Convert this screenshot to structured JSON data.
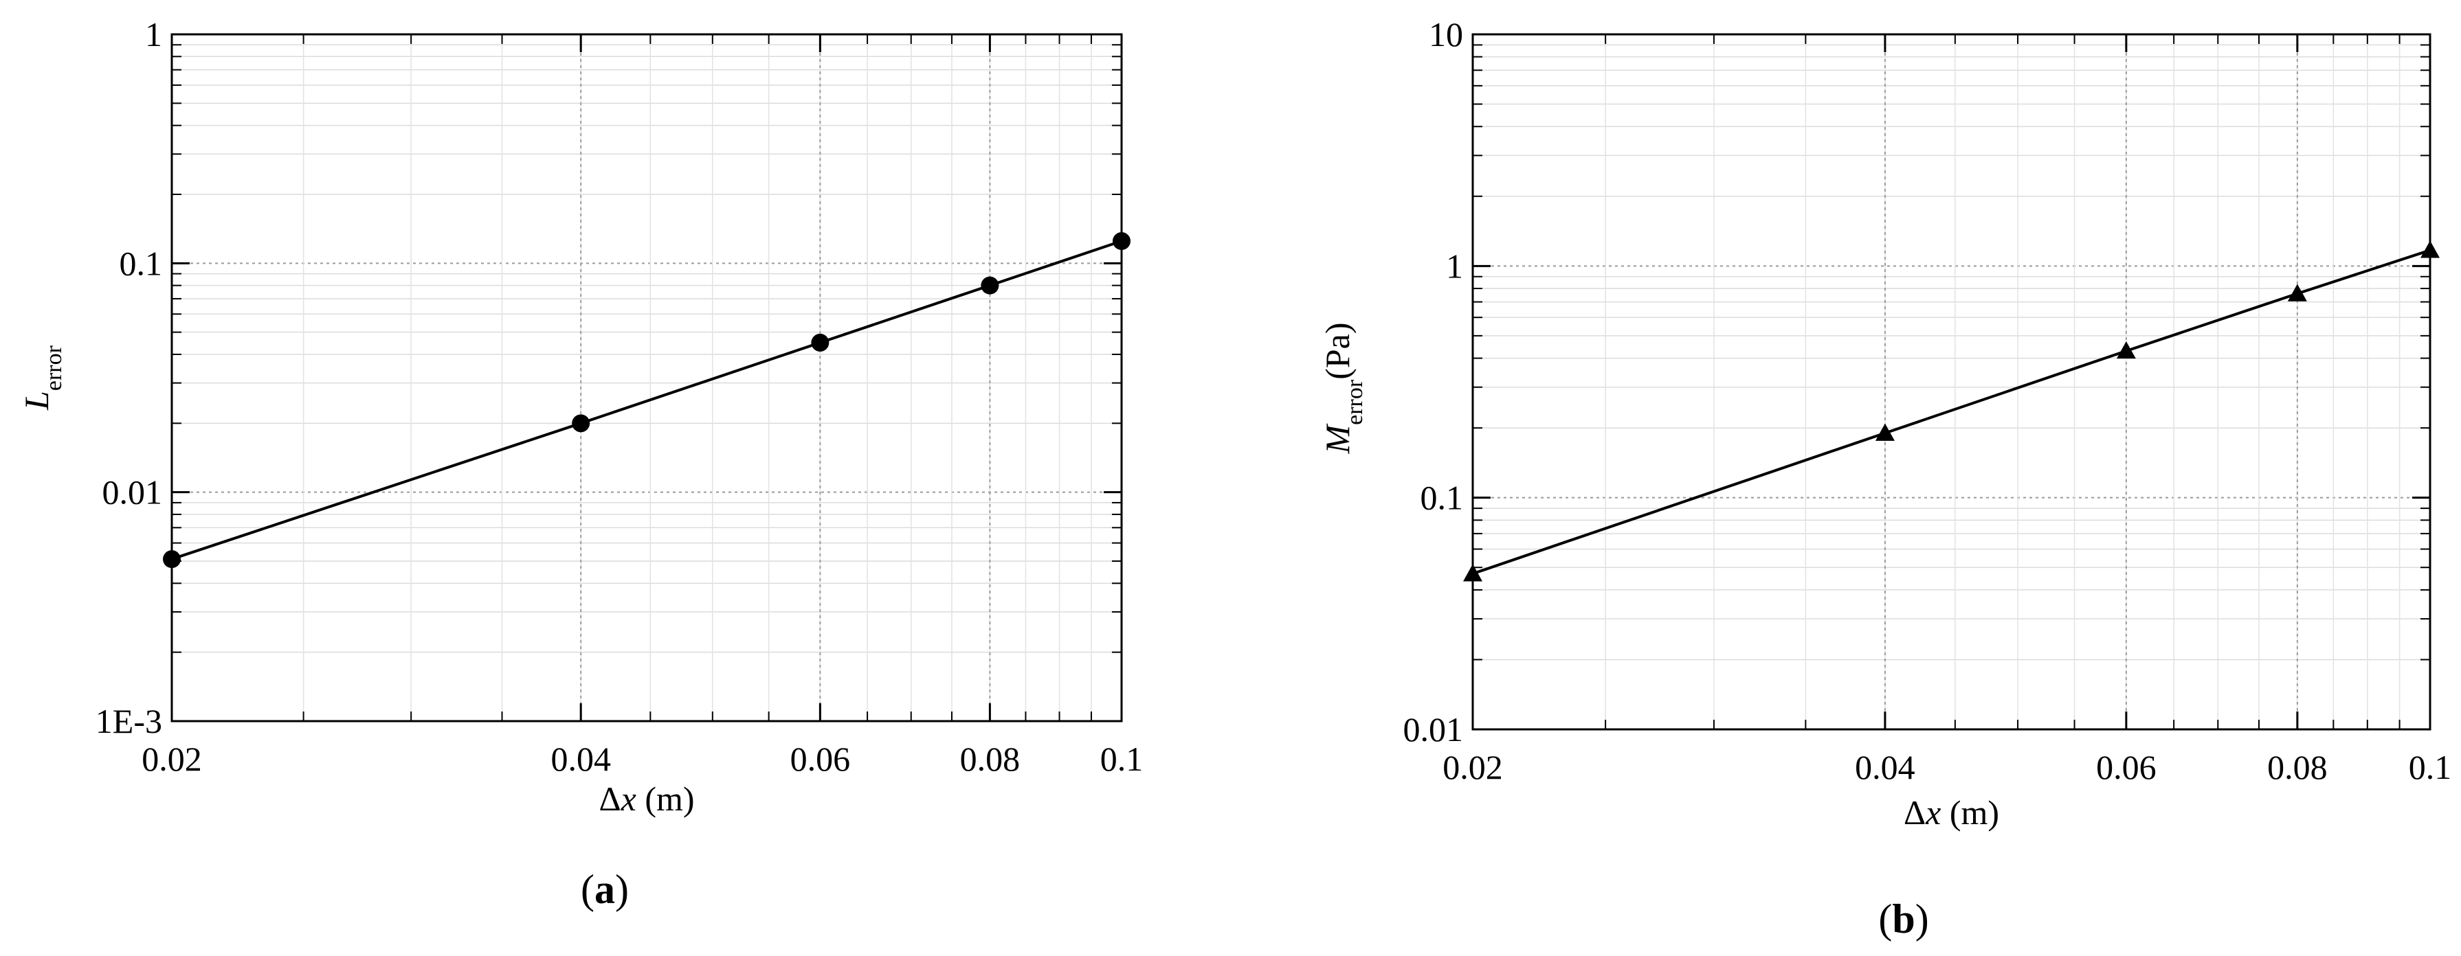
{
  "chart_data": [
    {
      "panel": "(a)",
      "panel_letter": "a",
      "type": "line",
      "scale": {
        "x": "log",
        "y": "log"
      },
      "xlim": [
        0.02,
        0.1
      ],
      "ylim": [
        0.001,
        1
      ],
      "xticks": [
        "0.02",
        "0.04",
        "0.06",
        "0.08",
        "0.1"
      ],
      "xtick_values": [
        0.02,
        0.04,
        0.06,
        0.08,
        0.1
      ],
      "yticks": [
        "1E-3",
        "0.01",
        "0.1",
        "1"
      ],
      "ytick_values": [
        0.001,
        0.01,
        0.1,
        1
      ],
      "xlabel": {
        "symbol": "Δx",
        "unit": " (m)"
      },
      "ylabel": {
        "symbol": "L",
        "subscript": "error",
        "unit": ""
      },
      "grid": true,
      "marker": "circle",
      "series": [
        {
          "x": [
            0.02,
            0.04,
            0.06,
            0.08,
            0.1
          ],
          "y": [
            0.0051,
            0.02,
            0.045,
            0.08,
            0.125
          ]
        }
      ]
    },
    {
      "panel": "(b)",
      "panel_letter": "b",
      "type": "line",
      "scale": {
        "x": "log",
        "y": "log"
      },
      "xlim": [
        0.02,
        0.1
      ],
      "ylim": [
        0.01,
        10
      ],
      "xticks": [
        "0.02",
        "0.04",
        "0.06",
        "0.08",
        "0.1"
      ],
      "xtick_values": [
        0.02,
        0.04,
        0.06,
        0.08,
        0.1
      ],
      "yticks": [
        "0.01",
        "0.1",
        "1",
        "10"
      ],
      "ytick_values": [
        0.01,
        0.1,
        1,
        10
      ],
      "xlabel": {
        "symbol": "Δx",
        "unit": " (m)"
      },
      "ylabel": {
        "symbol": "M",
        "subscript": "error",
        "unit": "(Pa)"
      },
      "grid": true,
      "marker": "triangle",
      "series": [
        {
          "x": [
            0.02,
            0.04,
            0.06,
            0.08,
            0.1
          ],
          "y": [
            0.047,
            0.19,
            0.43,
            0.76,
            1.17
          ]
        }
      ]
    }
  ]
}
